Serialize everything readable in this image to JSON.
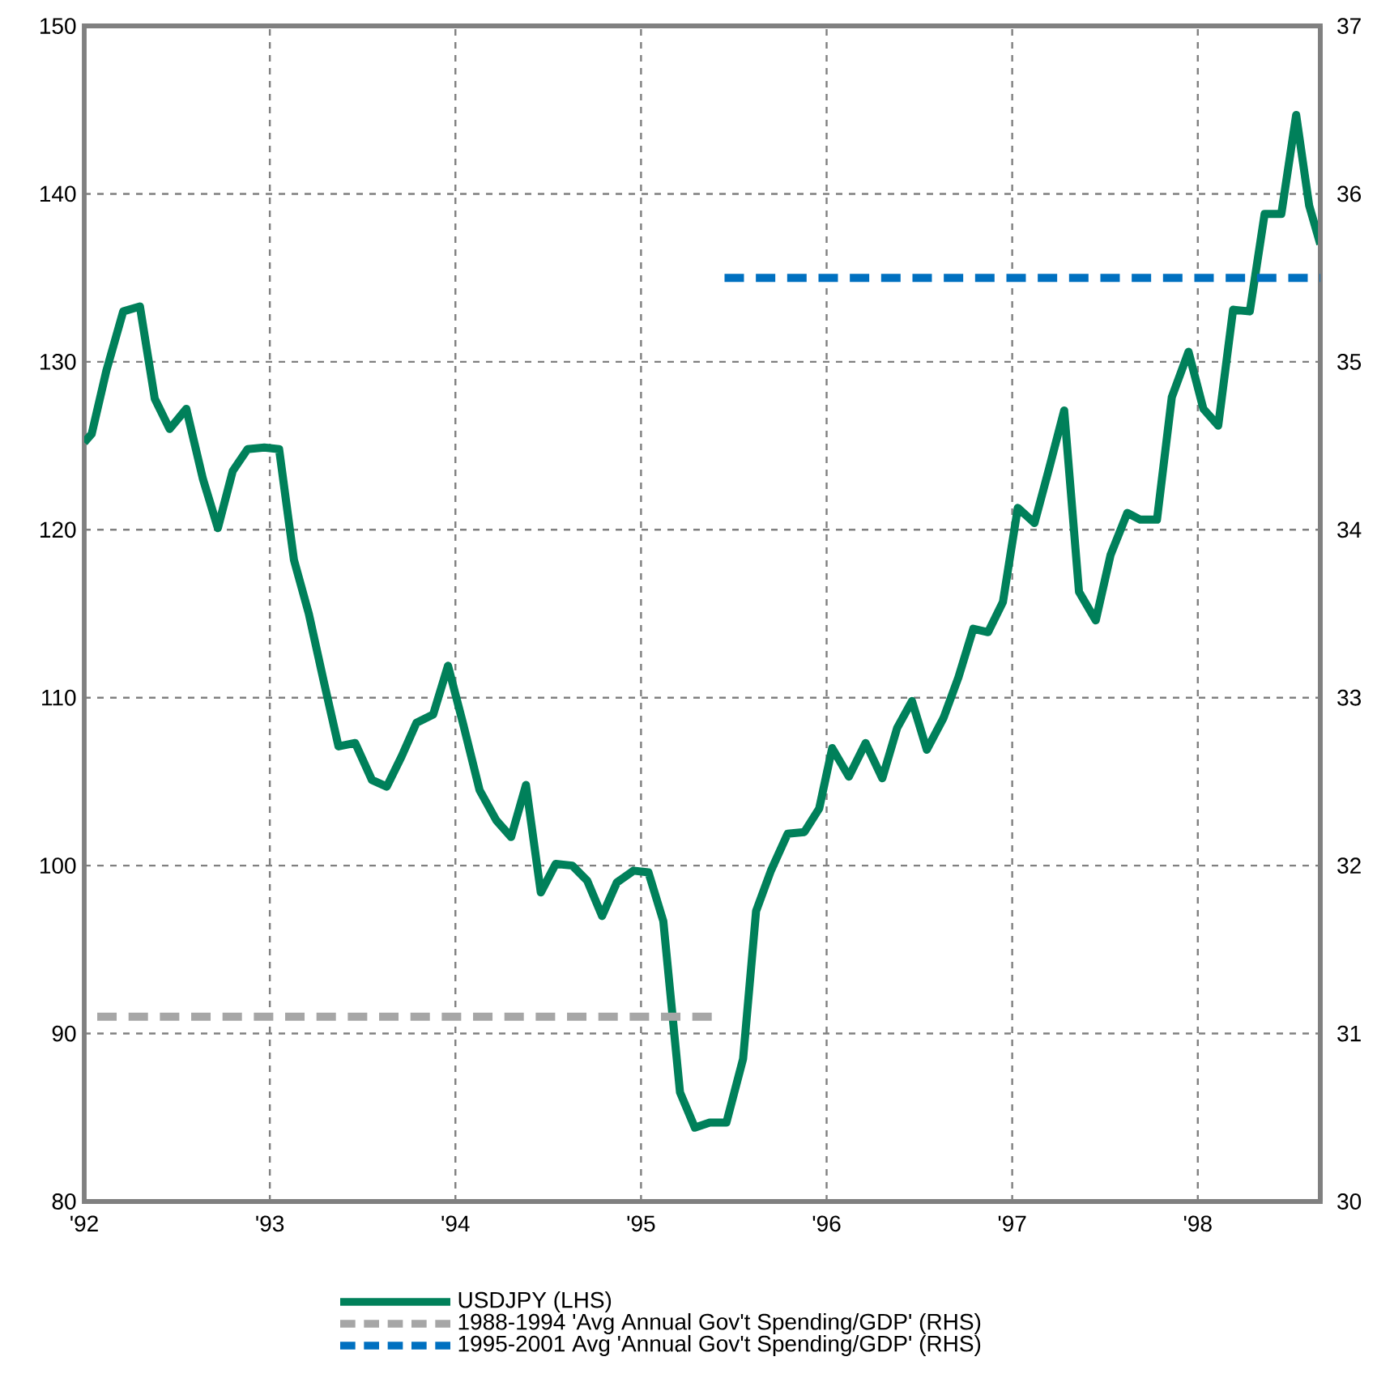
{
  "chart_data": {
    "type": "line",
    "xlim": [
      1992,
      1998.66
    ],
    "xticks": [
      {
        "value": 1992,
        "label": "'92"
      },
      {
        "value": 1993,
        "label": "'93"
      },
      {
        "value": 1994,
        "label": "'94"
      },
      {
        "value": 1995,
        "label": "'95"
      },
      {
        "value": 1996,
        "label": "'96"
      },
      {
        "value": 1997,
        "label": "'97"
      },
      {
        "value": 1998,
        "label": "'98"
      }
    ],
    "ylim": [
      80,
      150
    ],
    "yticks": [
      80,
      90,
      100,
      110,
      120,
      130,
      140,
      150
    ],
    "y2lim": [
      30,
      37
    ],
    "y2ticks": [
      30,
      31,
      32,
      33,
      34,
      35,
      36,
      37
    ],
    "grid": true,
    "legend": "bottom",
    "marker": "none",
    "series": [
      {
        "name": "USDJPY  (LHS)",
        "color": "#00805a",
        "line_style": "solid",
        "axis": "y",
        "x": [
          1992.0,
          1992.04,
          1992.12,
          1992.21,
          1992.3,
          1992.38,
          1992.46,
          1992.55,
          1992.64,
          1992.72,
          1992.8,
          1992.88,
          1992.97,
          1993.05,
          1993.13,
          1993.21,
          1993.29,
          1993.37,
          1993.46,
          1993.55,
          1993.63,
          1993.71,
          1993.79,
          1993.88,
          1993.96,
          1994.04,
          1994.13,
          1994.22,
          1994.3,
          1994.38,
          1994.46,
          1994.54,
          1994.63,
          1994.71,
          1994.79,
          1994.87,
          1994.96,
          1995.04,
          1995.12,
          1995.21,
          1995.29,
          1995.37,
          1995.46,
          1995.55,
          1995.62,
          1995.7,
          1995.79,
          1995.88,
          1995.96,
          1996.03,
          1996.12,
          1996.21,
          1996.3,
          1996.38,
          1996.46,
          1996.54,
          1996.63,
          1996.71,
          1996.79,
          1996.87,
          1996.95,
          1997.03,
          1997.12,
          1997.2,
          1997.28,
          1997.36,
          1997.45,
          1997.53,
          1997.62,
          1997.69,
          1997.78,
          1997.86,
          1997.95,
          1998.03,
          1998.11,
          1998.19,
          1998.28,
          1998.36,
          1998.45,
          1998.53,
          1998.6,
          1998.66
        ],
        "values": [
          125.2,
          125.7,
          129.5,
          133.0,
          133.3,
          127.8,
          126.0,
          127.2,
          123.0,
          120.1,
          123.5,
          124.8,
          124.9,
          124.8,
          118.2,
          115.0,
          111.0,
          107.1,
          107.3,
          105.1,
          104.7,
          106.5,
          108.5,
          109.0,
          111.9,
          108.5,
          104.5,
          102.7,
          101.7,
          104.8,
          98.4,
          100.1,
          100.0,
          99.1,
          97.0,
          99.0,
          99.7,
          99.6,
          96.7,
          86.5,
          84.4,
          84.7,
          84.7,
          88.5,
          97.3,
          99.7,
          101.9,
          102.0,
          103.4,
          107.0,
          105.3,
          107.3,
          105.2,
          108.2,
          109.8,
          106.9,
          108.8,
          111.2,
          114.1,
          113.9,
          115.7,
          121.3,
          120.4,
          123.7,
          127.1,
          116.3,
          114.6,
          118.5,
          121.0,
          120.6,
          120.6,
          127.9,
          130.6,
          127.2,
          126.2,
          133.1,
          133.0,
          138.8,
          138.8,
          144.7,
          139.3,
          137.0
        ]
      },
      {
        "name": "1988-1994 'Avg Annual Gov't Spending/GDP' (RHS)",
        "color": "#a6a6a6",
        "line_style": "dashed",
        "axis": "y2",
        "x": [
          1992.07,
          1995.39
        ],
        "values": [
          31.1,
          31.1
        ]
      },
      {
        "name": "1995-2001 Avg 'Annual Gov't Spending/GDP' (RHS)",
        "color": "#0070c0",
        "line_style": "dashed",
        "axis": "y2",
        "x": [
          1995.45,
          1998.66
        ],
        "values": [
          35.5,
          35.5
        ]
      }
    ]
  }
}
